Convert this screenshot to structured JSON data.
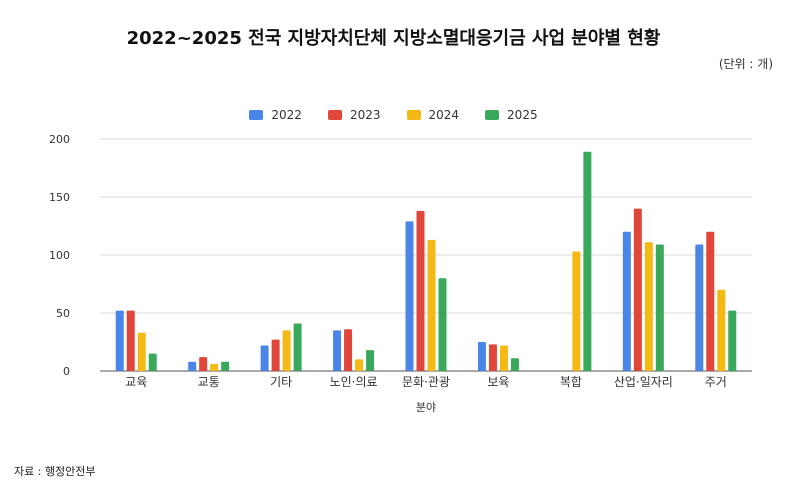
{
  "title": "2022~2025 전국 지방자치단체 지방소멸대응기금 사업 분야별 현황",
  "unit": "(단위 : 개)",
  "source": "자료 : 행정안전부",
  "colors": {
    "2022": "#4a86e8",
    "2023": "#e0463a",
    "2024": "#f4b913",
    "2025": "#3aa85a"
  },
  "chart_data": {
    "type": "bar",
    "title": "2022~2025 전국 지방자치단체 지방소멸대응기금 사업 분야별 현황",
    "xlabel": "분야",
    "ylabel": "",
    "ylim": [
      0,
      200
    ],
    "yticks": [
      0,
      50,
      100,
      150,
      200
    ],
    "grid": true,
    "legend_position": "top",
    "categories": [
      "교육",
      "교통",
      "기타",
      "노인·의료",
      "문화·관광",
      "보육",
      "복합",
      "산업·일자리",
      "주거"
    ],
    "series": [
      {
        "name": "2022",
        "color": "#4a86e8",
        "values": [
          52,
          8,
          22,
          35,
          129,
          25,
          null,
          120,
          109
        ]
      },
      {
        "name": "2023",
        "color": "#e0463a",
        "values": [
          52,
          12,
          27,
          36,
          138,
          23,
          null,
          140,
          120
        ]
      },
      {
        "name": "2024",
        "color": "#f4b913",
        "values": [
          33,
          6,
          35,
          10,
          113,
          22,
          103,
          111,
          70
        ]
      },
      {
        "name": "2025",
        "color": "#3aa85a",
        "values": [
          15,
          8,
          41,
          18,
          80,
          11,
          189,
          109,
          52
        ]
      }
    ]
  }
}
